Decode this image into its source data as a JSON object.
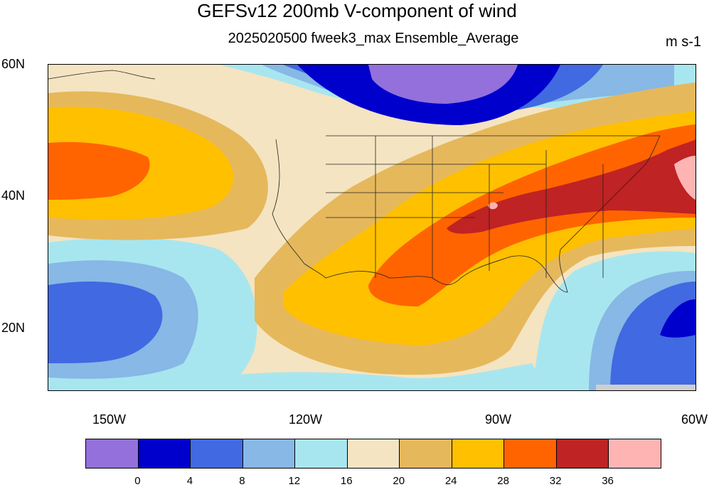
{
  "header": {
    "title": "GEFSv12 200mb V-component of wind",
    "subtitle": "2025020500 fweek3_max Ensemble_Average",
    "units": "m s-1"
  },
  "axes": {
    "lat_labels": [
      "60N",
      "40N",
      "20N"
    ],
    "lon_labels": [
      "150W",
      "120W",
      "90W",
      "60W"
    ]
  },
  "colorbar": {
    "colors": [
      "#9370db",
      "#0000cd",
      "#4169e1",
      "#87b8e6",
      "#a8e6ef",
      "#f4e4c1",
      "#e6b85c",
      "#ffc000",
      "#ff6400",
      "#bf2323",
      "#ffb4b4"
    ],
    "labels": [
      "0",
      "4",
      "8",
      "12",
      "16",
      "20",
      "24",
      "28",
      "32",
      "36"
    ]
  }
}
